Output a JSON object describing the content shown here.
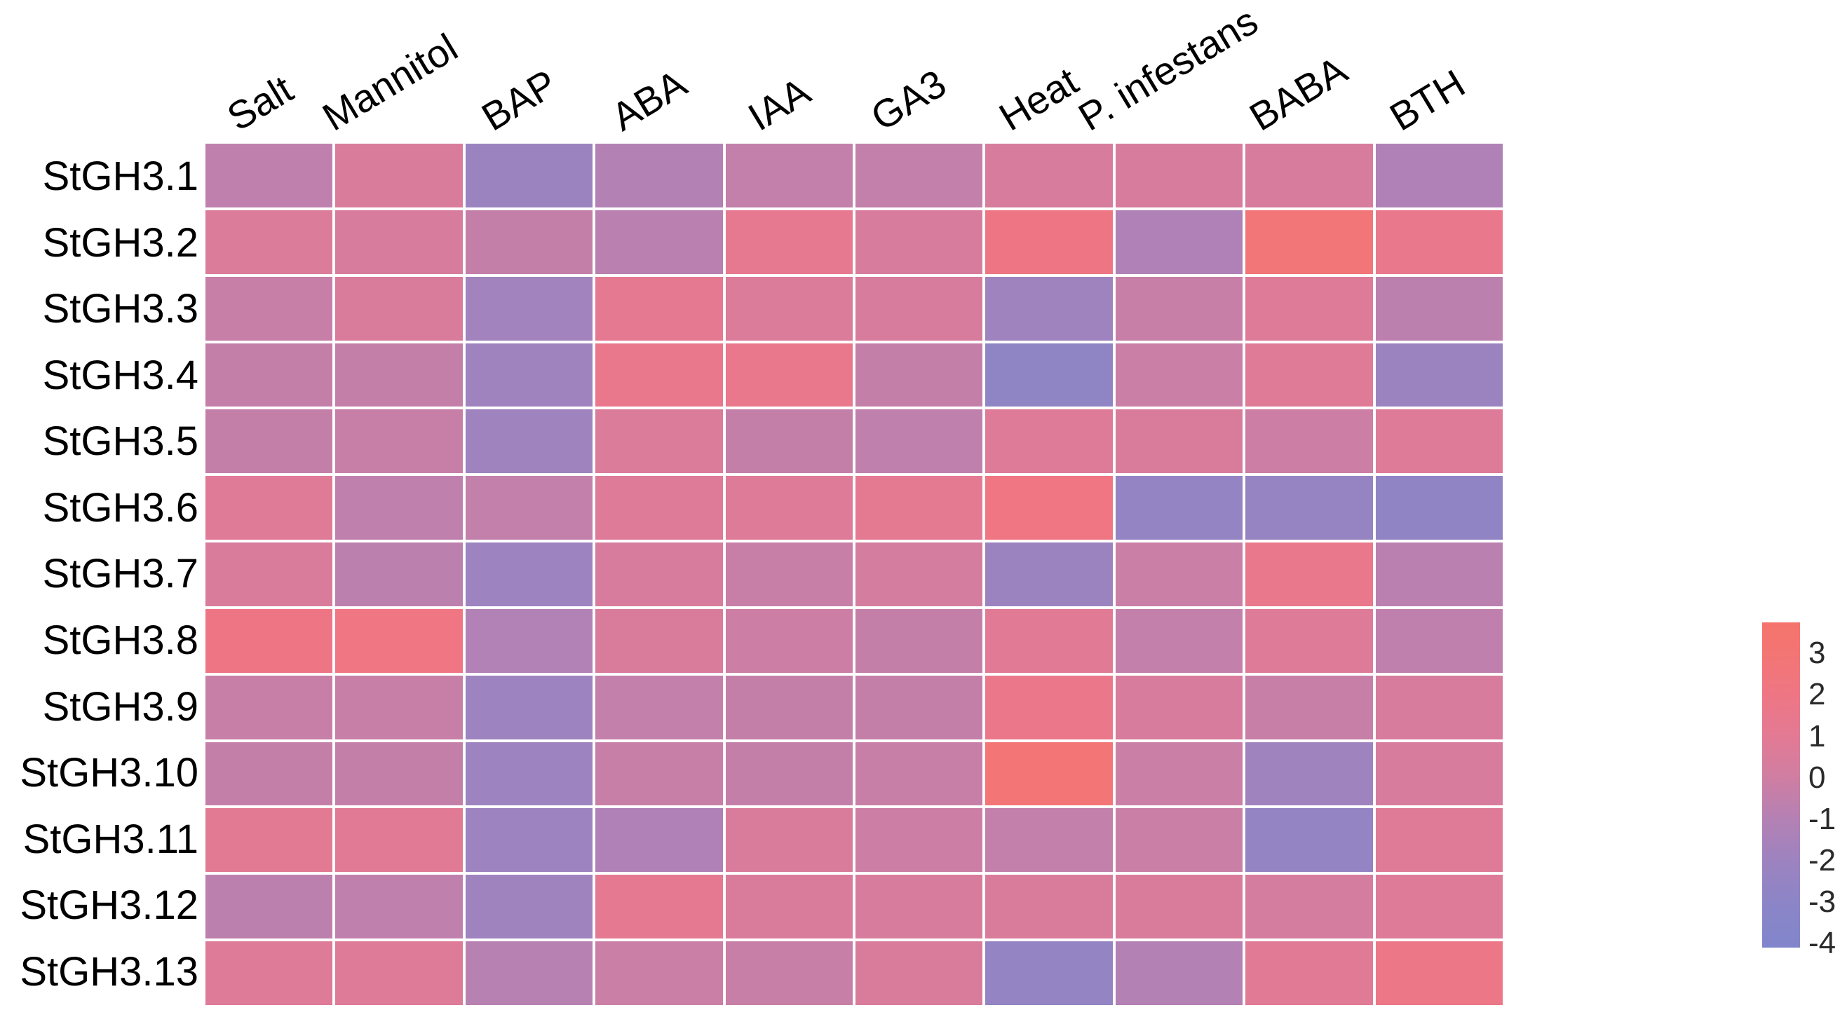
{
  "figure": {
    "background": "#ffffff",
    "grid_line_color": "#ffffff"
  },
  "chart_data": {
    "type": "heatmap",
    "title": "",
    "rows": [
      "StGH3.1",
      "StGH3.2",
      "StGH3.3",
      "StGH3.4",
      "StGH3.5",
      "StGH3.6",
      "StGH3.7",
      "StGH3.8",
      "StGH3.9",
      "StGH3.10",
      "StGH3.11",
      "StGH3.12",
      "StGH3.13"
    ],
    "columns": [
      "Salt",
      "Mannitol",
      "BAP",
      "ABA",
      "IAA",
      "GA3",
      "Heat",
      "P. infestans",
      "BABA",
      "BTH"
    ],
    "values": [
      [
        -0.6,
        0.5,
        -2.1,
        -1.0,
        -0.5,
        -0.5,
        0.4,
        0.4,
        0.4,
        -1.2
      ],
      [
        0.6,
        0.4,
        -0.4,
        -0.8,
        1.3,
        0.4,
        2.0,
        -1.2,
        2.8,
        1.5
      ],
      [
        -0.3,
        0.5,
        -1.8,
        1.2,
        0.6,
        0.4,
        -1.9,
        -0.3,
        0.7,
        -0.7
      ],
      [
        -0.4,
        -0.4,
        -1.9,
        1.5,
        1.5,
        -0.4,
        -2.8,
        -0.2,
        0.8,
        -2.1
      ],
      [
        -0.4,
        -0.3,
        -1.9,
        0.6,
        -0.4,
        -0.6,
        0.7,
        0.5,
        -0.1,
        0.7
      ],
      [
        0.8,
        -0.6,
        -0.5,
        0.7,
        0.7,
        1.1,
        2.1,
        -2.5,
        -2.4,
        -2.7
      ],
      [
        0.5,
        -0.7,
        -2.0,
        0.4,
        -0.3,
        0.3,
        -2.1,
        -0.2,
        1.5,
        -0.8
      ],
      [
        2.0,
        2.1,
        -1.1,
        0.5,
        -0.1,
        -0.4,
        0.9,
        -0.5,
        0.7,
        -0.6
      ],
      [
        -0.3,
        -0.3,
        -2.0,
        -0.5,
        -0.4,
        -0.4,
        1.6,
        0.4,
        -0.3,
        0.4
      ],
      [
        -0.4,
        -0.4,
        -2.0,
        -0.3,
        -0.4,
        -0.3,
        2.9,
        -0.2,
        -1.9,
        0.4
      ],
      [
        1.0,
        0.9,
        -2.0,
        -1.2,
        0.5,
        -0.1,
        -0.5,
        -0.2,
        -2.5,
        0.8
      ],
      [
        -0.7,
        -0.6,
        -1.9,
        1.2,
        0.5,
        0.4,
        0.5,
        0.5,
        0.3,
        0.7
      ],
      [
        0.7,
        0.7,
        -0.9,
        -0.2,
        -0.3,
        0.5,
        -2.5,
        -1.0,
        0.9,
        1.8
      ]
    ],
    "value_domain": [
      -4.1,
      3.75
    ],
    "legend_position": "right",
    "colorbar": {
      "ticks": [
        {
          "label": "3",
          "value": 3
        },
        {
          "label": "2",
          "value": 2
        },
        {
          "label": "1",
          "value": 1
        },
        {
          "label": "0",
          "value": 0
        },
        {
          "label": "-1",
          "value": -1
        },
        {
          "label": "-2",
          "value": -2
        },
        {
          "label": "-3",
          "value": -3
        },
        {
          "label": "-4",
          "value": -4
        }
      ],
      "gradient_stops": [
        {
          "value": 3.75,
          "color": "#f5736c"
        },
        {
          "value": 3.0,
          "color": "#f37574"
        },
        {
          "value": 2.0,
          "color": "#ee7684"
        },
        {
          "value": 1.0,
          "color": "#e37a94"
        },
        {
          "value": 0.0,
          "color": "#cf7ea2"
        },
        {
          "value": -1.0,
          "color": "#b481b4"
        },
        {
          "value": -2.0,
          "color": "#9d83bf"
        },
        {
          "value": -3.0,
          "color": "#8c85c7"
        },
        {
          "value": -4.1,
          "color": "#8185cb"
        }
      ]
    }
  }
}
